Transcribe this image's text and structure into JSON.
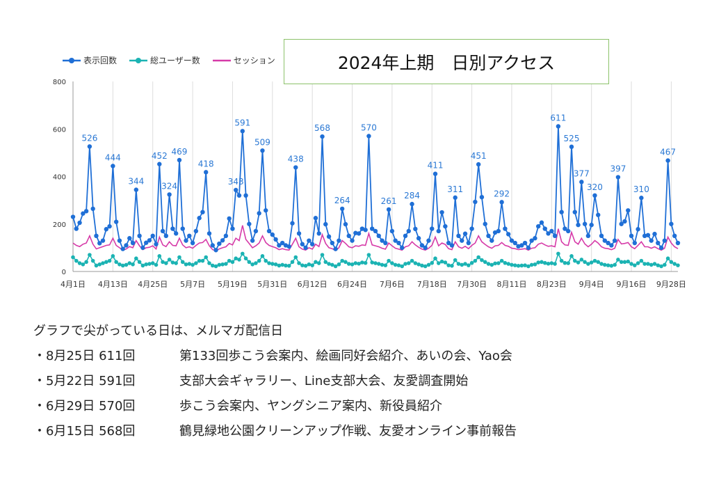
{
  "title": "2024年上期　日別アクセス",
  "notes": {
    "heading": "グラフで尖がっている日は、メルマガ配信日",
    "items": [
      {
        "date": "・8月25日 611回",
        "desc": "第133回歩こう会案内、絵画同好会紹介、あいの会、Yao会"
      },
      {
        "date": "・5月22日 591回",
        "desc": "支部大会ギャラリー、Line支部大会、友愛調査開始"
      },
      {
        "date": "・6月29日 570回",
        "desc": "歩こう会案内、ヤングシニア案内、新役員紹介"
      },
      {
        "date": "・6月15日 568回",
        "desc": "鶴見緑地公園クリーンアップ作戦、友愛オンライン事前報告"
      }
    ]
  },
  "chart_data": {
    "type": "line",
    "title": "2024年上期　日別アクセス",
    "x_start": "4月1日",
    "x_ticks": [
      "4月1日",
      "4月13日",
      "4月25日",
      "5月7日",
      "5月19日",
      "5月31日",
      "6月12日",
      "6月24日",
      "7月6日",
      "7月18日",
      "7月30日",
      "8月11日",
      "8月23日",
      "9月4日",
      "9月16日",
      "9月28日"
    ],
    "y_ticks": [
      0,
      200,
      400,
      600,
      800
    ],
    "ylim": [
      0,
      800
    ],
    "grid": "vertical",
    "legend": "top-left",
    "colors": {
      "views": "#1f6fd6",
      "users": "#1bb3b3",
      "sessions": "#d63aa8"
    },
    "series": [
      {
        "name": "表示回数",
        "key": "views",
        "values": [
          230,
          180,
          205,
          244,
          254,
          526,
          264,
          150,
          119,
          130,
          178,
          190,
          444,
          209,
          130,
          95,
          110,
          140,
          120,
          344,
          150,
          100,
          121,
          131,
          150,
          115,
          452,
          170,
          150,
          324,
          180,
          160,
          469,
          180,
          130,
          150,
          120,
          170,
          225,
          250,
          418,
          160,
          110,
          90,
          117,
          131,
          150,
          223,
          180,
          343,
          320,
          591,
          320,
          200,
          130,
          170,
          245,
          509,
          257,
          170,
          155,
          135,
          110,
          120,
          110,
          105,
          203,
          438,
          160,
          115,
          100,
          130,
          115,
          225,
          160,
          568,
          199,
          147,
          120,
          95,
          130,
          264,
          199,
          150,
          130,
          162,
          160,
          180,
          175,
          570,
          180,
          170,
          150,
          130,
          120,
          261,
          170,
          130,
          120,
          100,
          150,
          170,
          284,
          179,
          140,
          110,
          100,
          130,
          180,
          411,
          170,
          249,
          190,
          120,
          110,
          311,
          150,
          130,
          159,
          120,
          180,
          293,
          451,
          313,
          200,
          150,
          130,
          164,
          170,
          292,
          180,
          157,
          130,
          120,
          106,
          110,
          120,
          100,
          130,
          140,
          190,
          206,
          180,
          160,
          170,
          150,
          611,
          250,
          180,
          170,
          525,
          250,
          196,
          377,
          200,
          150,
          196,
          320,
          238,
          150,
          130,
          120,
          110,
          130,
          397,
          200,
          211,
          257,
          150,
          120,
          178,
          310,
          150,
          153,
          130,
          158,
          120,
          100,
          130,
          467,
          200,
          150,
          120
        ]
      },
      {
        "name": "総ユーザー数",
        "key": "users",
        "values": [
          60,
          45,
          35,
          30,
          40,
          70,
          45,
          25,
          30,
          35,
          40,
          45,
          65,
          40,
          30,
          25,
          28,
          35,
          30,
          55,
          40,
          25,
          30,
          32,
          35,
          28,
          65,
          40,
          35,
          50,
          38,
          35,
          60,
          40,
          30,
          32,
          28,
          35,
          45,
          45,
          60,
          35,
          25,
          22,
          28,
          30,
          32,
          45,
          40,
          55,
          50,
          75,
          55,
          40,
          30,
          35,
          45,
          65,
          45,
          35,
          32,
          30,
          25,
          28,
          25,
          24,
          40,
          60,
          35,
          26,
          24,
          30,
          26,
          40,
          35,
          70,
          40,
          32,
          28,
          22,
          30,
          45,
          40,
          32,
          30,
          35,
          33,
          38,
          36,
          70,
          38,
          35,
          32,
          28,
          26,
          45,
          35,
          28,
          26,
          22,
          32,
          35,
          45,
          35,
          30,
          25,
          22,
          28,
          36,
          55,
          35,
          42,
          38,
          26,
          24,
          48,
          32,
          28,
          32,
          26,
          36,
          45,
          60,
          48,
          40,
          32,
          28,
          34,
          35,
          45,
          36,
          32,
          28,
          26,
          24,
          25,
          26,
          22,
          28,
          30,
          38,
          40,
          36,
          33,
          35,
          32,
          75,
          45,
          36,
          35,
          65,
          45,
          38,
          50,
          40,
          32,
          38,
          45,
          40,
          32,
          28,
          26,
          24,
          28,
          50,
          40,
          40,
          42,
          32,
          26,
          35,
          45,
          32,
          32,
          28,
          32,
          26,
          22,
          28,
          55,
          40,
          32,
          26
        ]
      },
      {
        "name": "セッション",
        "key": "sessions",
        "values": [
          120,
          110,
          105,
          115,
          120,
          150,
          115,
          95,
          100,
          105,
          110,
          112,
          140,
          110,
          100,
          90,
          95,
          105,
          100,
          130,
          108,
          92,
          100,
          102,
          108,
          95,
          145,
          112,
          105,
          125,
          110,
          108,
          140,
          112,
          100,
          104,
          98,
          110,
          120,
          122,
          135,
          108,
          92,
          88,
          95,
          100,
          104,
          118,
          112,
          140,
          130,
          194,
          135,
          118,
          100,
          108,
          120,
          150,
          122,
          110,
          105,
          100,
          92,
          96,
          92,
          90,
          115,
          140,
          104,
          94,
          90,
          100,
          94,
          115,
          105,
          155,
          118,
          100,
          96,
          88,
          100,
          130,
          118,
          104,
          100,
          108,
          106,
          112,
          110,
          160,
          112,
          108,
          104,
          98,
          94,
          120,
          108,
          98,
          94,
          90,
          104,
          108,
          125,
          112,
          102,
          94,
          90,
          98,
          110,
          145,
          108,
          120,
          114,
          96,
          92,
          125,
          104,
          98,
          106,
          96,
          110,
          120,
          150,
          125,
          114,
          104,
          98,
          108,
          110,
          122,
          110,
          106,
          98,
          96,
          92,
          94,
          96,
          90,
          98,
          100,
          115,
          120,
          112,
          106,
          108,
          104,
          180,
          125,
          112,
          110,
          165,
          125,
          115,
          140,
          116,
          104,
          115,
          130,
          120,
          104,
          98,
          96,
          92,
          98,
          135,
          116,
          118,
          122,
          104,
          96,
          110,
          125,
          104,
          104,
          98,
          104,
          96,
          90,
          98,
          145,
          120,
          104,
          96
        ]
      }
    ]
  }
}
